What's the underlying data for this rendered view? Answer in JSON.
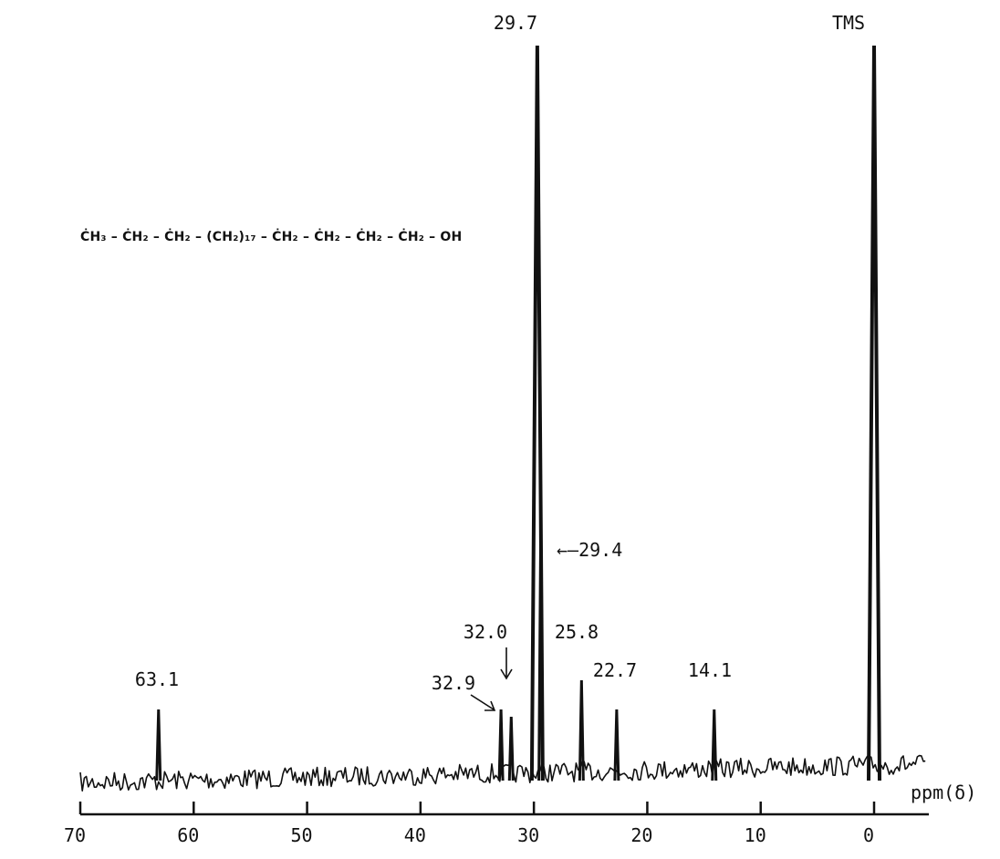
{
  "formula": "ĊH₃ – ĊH₂ – ĊH₂ – (CH₂)₁₇ – ĊH₂ – ĊH₂ – ĊH₂ – ĊH₂ – OH",
  "chart_data": {
    "type": "line",
    "title": "",
    "xlabel": "ppm(δ)",
    "ylabel": "",
    "x_reversed": true,
    "xlim": [
      70,
      -4
    ],
    "xticks": [
      70,
      60,
      50,
      40,
      30,
      20,
      10,
      0
    ],
    "xtick_labels": [
      "70",
      "60",
      "50",
      "40",
      "30",
      "20",
      "10",
      "0"
    ],
    "grid": false,
    "peaks": [
      {
        "label": "63.1",
        "ppm": 63.1,
        "height": 0.09
      },
      {
        "label": "32.9",
        "ppm": 32.9,
        "height": 0.09
      },
      {
        "label": "32.0",
        "ppm": 32.0,
        "height": 0.08
      },
      {
        "label": "29.7",
        "ppm": 29.7,
        "height": 1.0
      },
      {
        "label": "29.4",
        "ppm": 29.4,
        "height": 0.33
      },
      {
        "label": "25.8",
        "ppm": 25.8,
        "height": 0.13
      },
      {
        "label": "22.7",
        "ppm": 22.7,
        "height": 0.09
      },
      {
        "label": "14.1",
        "ppm": 14.1,
        "height": 0.09
      },
      {
        "label": "TMS",
        "ppm": 0.0,
        "height": 1.0
      }
    ]
  }
}
